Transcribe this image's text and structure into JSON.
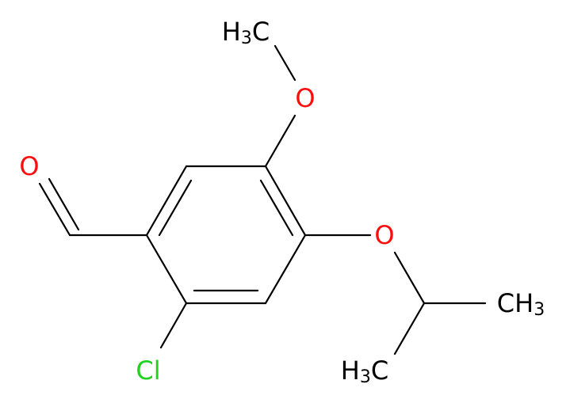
{
  "atoms": [
    {
      "label": [
        "O"
      ]
    },
    {
      "label": [
        "O"
      ]
    },
    {
      "label": [
        "H",
        "3",
        "C"
      ]
    },
    {
      "label": [
        "O"
      ]
    },
    {
      "label": [
        "CH",
        "3"
      ]
    },
    {
      "label": [
        "H",
        "3",
        "C"
      ]
    },
    {
      "label": [
        "Cl"
      ]
    }
  ]
}
